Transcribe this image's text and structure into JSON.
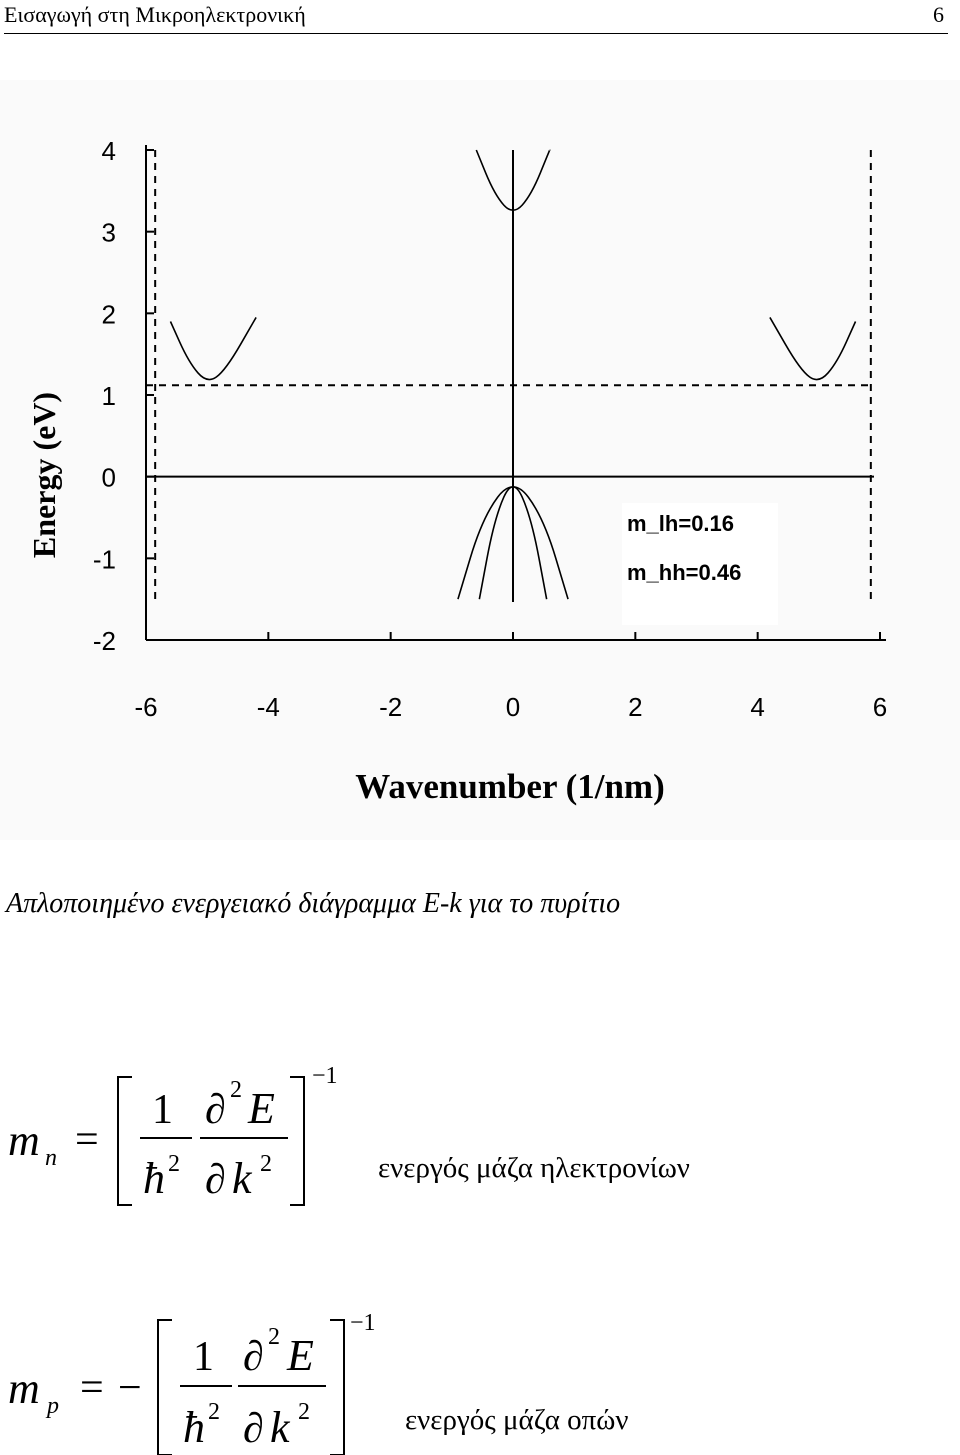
{
  "header": {
    "title": "Εισαγωγή στη Μικροηλεκτρονική",
    "page_number": "6"
  },
  "chart_data": {
    "type": "line",
    "xlabel": "Wavenumber (1/nm)",
    "ylabel": "Energy (eV)",
    "xlim": [
      -6,
      6
    ],
    "ylim": [
      -2,
      4
    ],
    "x_ticks": [
      "-6",
      "-4",
      "-2",
      "0",
      "2",
      "4",
      "6"
    ],
    "y_ticks": [
      "4",
      "3",
      "2",
      "1",
      "0",
      "-1",
      "-2"
    ],
    "grid": false,
    "annotations": [
      "m_lh=0.16",
      "m_hh=0.46"
    ],
    "series": [
      {
        "x": [
          -5.6,
          -5.3,
          -5.0,
          -4.7,
          -4.2
        ],
        "y": [
          1.9,
          1.4,
          1.14,
          1.3,
          1.95
        ]
      },
      {
        "x": [
          4.2,
          4.7,
          5.0,
          5.3,
          5.6
        ],
        "y": [
          1.95,
          1.3,
          1.14,
          1.4,
          1.9
        ]
      },
      {
        "x": [
          -0.6,
          -0.3,
          0,
          0.3,
          0.6
        ],
        "y": [
          4.0,
          3.45,
          3.2,
          3.45,
          4.0
        ]
      },
      {
        "x": [
          -0.55,
          -0.3,
          0,
          0.3,
          0.55
        ],
        "y": [
          -1.5,
          -0.5,
          0,
          -0.5,
          -1.5
        ]
      },
      {
        "x": [
          -0.9,
          -0.5,
          0,
          0.5,
          0.9
        ],
        "y": [
          -1.5,
          -0.5,
          0,
          -0.5,
          -1.5
        ]
      }
    ],
    "reference_lines": [
      {
        "style": "solid",
        "orientation": "horizontal",
        "value": 0
      },
      {
        "style": "dashed",
        "orientation": "horizontal",
        "value": 1.12
      },
      {
        "style": "solid",
        "orientation": "vertical",
        "value": 0
      },
      {
        "style": "dashed",
        "orientation": "vertical",
        "value": -5.85
      },
      {
        "style": "dashed",
        "orientation": "vertical",
        "value": 5.85
      }
    ]
  },
  "caption": "Απλοποιημένο ενεργειακό διάγραμμα E-k για το πυρίτιο",
  "equations": [
    {
      "lhs_symbol": "m",
      "lhs_subscript": "n",
      "equals": "=",
      "sign": "",
      "frac1_num": "1",
      "frac1_den": "ħ",
      "frac1_den_exp": "2",
      "frac2_num_partial": "∂",
      "frac2_num_exp": "2",
      "frac2_num_var": "E",
      "frac2_den_partial": "∂",
      "frac2_den_var": "k",
      "frac2_den_exp": "2",
      "outer_exp": "−1",
      "label": "ενεργός μάζα ηλεκτρονίων"
    },
    {
      "lhs_symbol": "m",
      "lhs_subscript": "p",
      "equals": "=",
      "sign": "−",
      "frac1_num": "1",
      "frac1_den": "ħ",
      "frac1_den_exp": "2",
      "frac2_num_partial": "∂",
      "frac2_num_exp": "2",
      "frac2_num_var": "E",
      "frac2_den_partial": "∂",
      "frac2_den_var": "k",
      "frac2_den_exp": "2",
      "outer_exp": "−1",
      "label": "ενεργός μάζα οπών"
    }
  ]
}
